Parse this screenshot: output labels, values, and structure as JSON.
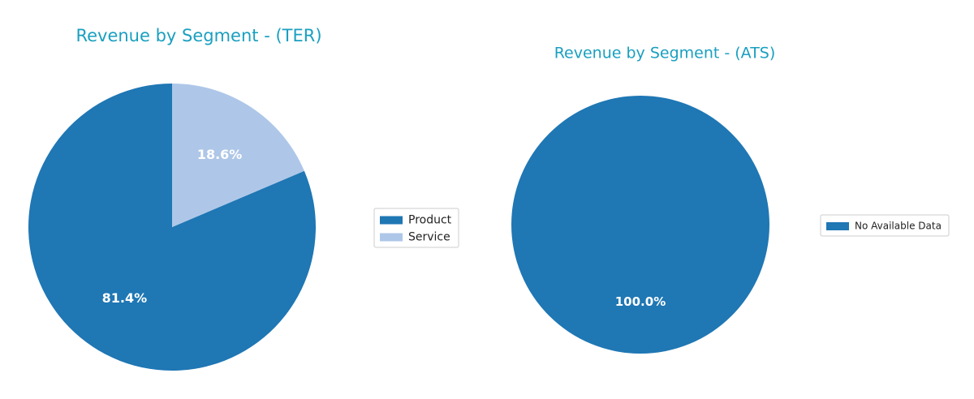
{
  "chart_data": [
    {
      "type": "pie",
      "title": "Revenue by Segment - (TER)",
      "categories": [
        "Product",
        "Service"
      ],
      "values": [
        81.4,
        18.6
      ],
      "value_labels": [
        "81.4%",
        "18.6%"
      ],
      "colors": [
        "#1f77b4",
        "#aec7e8"
      ]
    },
    {
      "type": "pie",
      "title": "Revenue by Segment - (ATS)",
      "categories": [
        "No Available Data"
      ],
      "values": [
        100
      ],
      "value_labels": [
        "100.0%"
      ],
      "colors": [
        "#1f77b4"
      ]
    }
  ]
}
